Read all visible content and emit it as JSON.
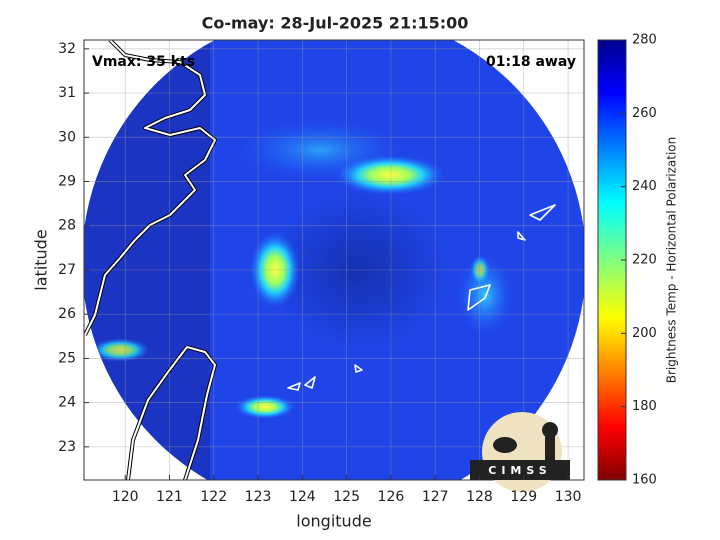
{
  "chart_data": {
    "type": "map",
    "title": "Co-may: 28-Jul-2025 21:15:00",
    "annotations": [
      "Vmax: 35 kts",
      "01:18 away"
    ],
    "x_label": "longitude",
    "y_label": "latitude",
    "xlim": [
      119.07,
      130.36
    ],
    "xticks": [
      120,
      121,
      122,
      123,
      124,
      125,
      126,
      127,
      128,
      129,
      130
    ],
    "ylim": [
      22.25,
      32.2
    ],
    "yticks": [
      23,
      24,
      25,
      26,
      27,
      28,
      29,
      30,
      31,
      32
    ],
    "grid": true,
    "colorbar": {
      "label": "Brightness Temp - Horizontal Polarization",
      "lim": [
        160,
        280
      ],
      "ticks": [
        160,
        180,
        200,
        220,
        240,
        260,
        280
      ]
    },
    "logo": "CIMSS"
  }
}
